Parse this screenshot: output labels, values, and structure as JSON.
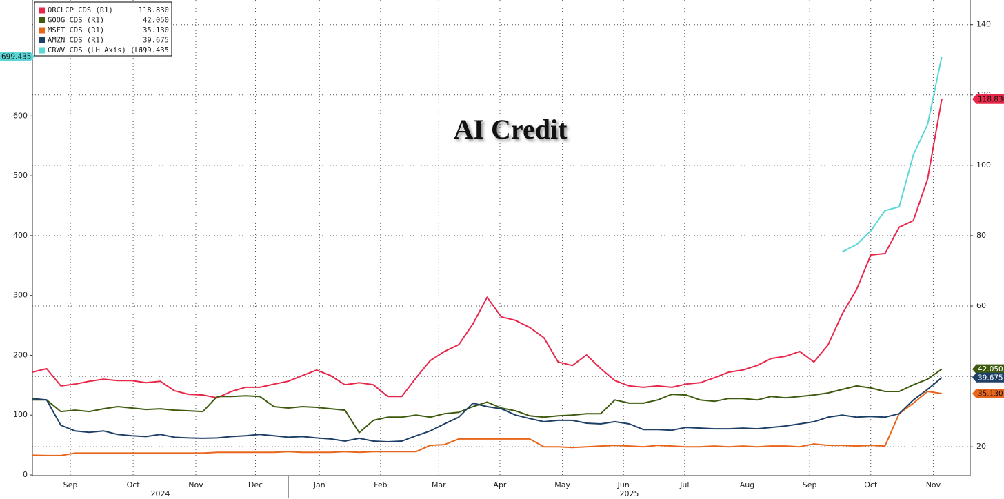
{
  "chart_data": {
    "type": "line",
    "title": "AI Credit",
    "xlim": [
      0,
      66
    ],
    "xticks": [
      {
        "value": 2.67,
        "label": "Sep"
      },
      {
        "value": 7.09,
        "label": "Oct"
      },
      {
        "value": 11.5,
        "label": "Nov"
      },
      {
        "value": 15.7,
        "label": "Dec"
      },
      {
        "value": 20.2,
        "label": "Jan"
      },
      {
        "value": 24.5,
        "label": "Feb"
      },
      {
        "value": 28.6,
        "label": "Mar"
      },
      {
        "value": 32.9,
        "label": "Apr"
      },
      {
        "value": 37.3,
        "label": "May"
      },
      {
        "value": 41.6,
        "label": "Jun"
      },
      {
        "value": 45.9,
        "label": "Jul"
      },
      {
        "value": 50.3,
        "label": "Aug"
      },
      {
        "value": 54.7,
        "label": "Sep"
      },
      {
        "value": 59.0,
        "label": "Oct"
      },
      {
        "value": 63.4,
        "label": "Nov"
      }
    ],
    "year_labels": [
      {
        "value": 9.0,
        "label": "2024"
      },
      {
        "value": 42.0,
        "label": "2025"
      }
    ],
    "ylim": [
      0,
      794
    ],
    "yticks": [
      0,
      100,
      200,
      300,
      400,
      500,
      600
    ],
    "y2lim": [
      12,
      147
    ],
    "y2ticks": [
      20,
      40,
      60,
      80,
      100,
      120,
      140
    ],
    "grid": true,
    "legend": "top-left",
    "series": [
      {
        "name": "ORCLCP CDS (R1)",
        "color": "#e8284a",
        "axis": "y2",
        "values": [
          41.2,
          42.2,
          37.3,
          37.8,
          38.6,
          39.2,
          38.8,
          38.8,
          38.2,
          38.6,
          35.9,
          34.9,
          34.7,
          33.9,
          35.7,
          36.9,
          36.9,
          37.8,
          38.6,
          40.2,
          41.8,
          40.2,
          37.6,
          38.2,
          37.6,
          34.3,
          34.3,
          39.6,
          44.5,
          47.1,
          49.0,
          54.9,
          62.5,
          56.9,
          55.9,
          53.9,
          51.0,
          44.1,
          43.1,
          46.1,
          42.2,
          38.8,
          37.3,
          36.9,
          37.3,
          36.9,
          37.8,
          38.2,
          39.6,
          41.2,
          41.8,
          43.1,
          45.1,
          45.7,
          47.1,
          44.1,
          49.0,
          57.8,
          64.7,
          74.5,
          74.9,
          82.4,
          84.3,
          96.1,
          118.83
        ],
        "value_labels": [
          null,
          null,
          null,
          null,
          null,
          null,
          null,
          null,
          null,
          null,
          null,
          null,
          null,
          null,
          null,
          null,
          null,
          null,
          null,
          null,
          null,
          null,
          null,
          null,
          null,
          null,
          null,
          null,
          null,
          null,
          null,
          null,
          null,
          null,
          null,
          null,
          null,
          null,
          null,
          null,
          null,
          null,
          null,
          null,
          null,
          null,
          null,
          null,
          null,
          null,
          null,
          null,
          null,
          null,
          null,
          null,
          null,
          null,
          null,
          null,
          null,
          null,
          null,
          null,
          "118.830"
        ]
      },
      {
        "name": "GOOG CDS (R1)",
        "color": "#3d5a0f",
        "axis": "y2",
        "values": [
          33.3,
          33.3,
          30.0,
          30.4,
          30.0,
          30.8,
          31.4,
          31.0,
          30.6,
          30.8,
          30.4,
          30.2,
          30.0,
          34.3,
          34.3,
          34.5,
          34.3,
          31.4,
          31.0,
          31.4,
          31.2,
          30.8,
          30.4,
          24.0,
          27.5,
          28.4,
          28.4,
          29.0,
          28.4,
          29.4,
          29.8,
          31.4,
          32.7,
          31.0,
          30.2,
          28.8,
          28.4,
          28.8,
          29.0,
          29.4,
          29.4,
          33.3,
          32.4,
          32.4,
          33.3,
          34.9,
          34.7,
          33.3,
          32.9,
          33.7,
          33.7,
          33.3,
          34.3,
          33.9,
          34.3,
          34.7,
          35.3,
          36.3,
          37.3,
          36.7,
          35.7,
          35.7,
          37.6,
          39.2,
          42.05
        ],
        "value_labels": [
          null,
          null,
          null,
          null,
          null,
          null,
          null,
          null,
          null,
          null,
          null,
          null,
          null,
          null,
          null,
          null,
          null,
          null,
          null,
          null,
          null,
          null,
          null,
          null,
          null,
          null,
          null,
          null,
          null,
          null,
          null,
          null,
          null,
          null,
          null,
          null,
          null,
          null,
          null,
          null,
          null,
          null,
          null,
          null,
          null,
          null,
          null,
          null,
          null,
          null,
          null,
          null,
          null,
          null,
          null,
          null,
          null,
          null,
          null,
          null,
          null,
          null,
          null,
          null,
          "42.050"
        ]
      },
      {
        "name": "MSFT CDS (R1)",
        "color": "#e8661c",
        "axis": "y2",
        "values": [
          17.6,
          17.5,
          17.5,
          18.2,
          18.2,
          18.2,
          18.2,
          18.2,
          18.2,
          18.2,
          18.2,
          18.2,
          18.2,
          18.4,
          18.4,
          18.4,
          18.4,
          18.4,
          18.6,
          18.4,
          18.4,
          18.4,
          18.6,
          18.4,
          18.6,
          18.6,
          18.6,
          18.6,
          20.4,
          20.6,
          22.2,
          22.2,
          22.2,
          22.2,
          22.2,
          22.2,
          20.0,
          20.0,
          19.8,
          20.0,
          20.2,
          20.4,
          20.2,
          20.0,
          20.4,
          20.2,
          20.0,
          20.0,
          20.2,
          20.0,
          20.2,
          20.0,
          20.2,
          20.2,
          20.0,
          20.8,
          20.4,
          20.4,
          20.2,
          20.4,
          20.2,
          29.4,
          32.4,
          35.7,
          35.13
        ],
        "value_labels": [
          null,
          null,
          null,
          null,
          null,
          null,
          null,
          null,
          null,
          null,
          null,
          null,
          null,
          null,
          null,
          null,
          null,
          null,
          null,
          null,
          null,
          null,
          null,
          null,
          null,
          null,
          null,
          null,
          null,
          null,
          null,
          null,
          null,
          null,
          null,
          null,
          null,
          null,
          null,
          null,
          null,
          null,
          null,
          null,
          null,
          null,
          null,
          null,
          null,
          null,
          null,
          null,
          null,
          null,
          null,
          null,
          null,
          null,
          null,
          null,
          null,
          null,
          null,
          null,
          "35.130"
        ]
      },
      {
        "name": "AMZN CDS (R1)",
        "color": "#1e3f66",
        "axis": "y2",
        "values": [
          33.7,
          33.3,
          26.1,
          24.5,
          24.1,
          24.5,
          23.5,
          23.1,
          22.9,
          23.5,
          22.7,
          22.5,
          22.4,
          22.5,
          22.9,
          23.1,
          23.5,
          23.1,
          22.7,
          22.9,
          22.5,
          22.2,
          21.6,
          22.4,
          21.6,
          21.4,
          21.6,
          23.1,
          24.5,
          26.5,
          28.4,
          32.4,
          31.4,
          30.8,
          29.0,
          28.0,
          27.1,
          27.5,
          27.5,
          26.7,
          26.5,
          27.1,
          26.5,
          24.9,
          24.9,
          24.7,
          25.5,
          25.3,
          25.1,
          25.1,
          25.3,
          25.1,
          25.5,
          25.9,
          26.5,
          27.1,
          28.4,
          29.0,
          28.4,
          28.6,
          28.4,
          29.4,
          33.3,
          36.3,
          39.675
        ],
        "value_labels": [
          null,
          null,
          null,
          null,
          null,
          null,
          null,
          null,
          null,
          null,
          null,
          null,
          null,
          null,
          null,
          null,
          null,
          null,
          null,
          null,
          null,
          null,
          null,
          null,
          null,
          null,
          null,
          null,
          null,
          null,
          null,
          null,
          null,
          null,
          null,
          null,
          null,
          null,
          null,
          null,
          null,
          null,
          null,
          null,
          null,
          null,
          null,
          null,
          null,
          null,
          null,
          null,
          null,
          null,
          null,
          null,
          null,
          null,
          null,
          null,
          null,
          null,
          null,
          null,
          "39.675"
        ]
      },
      {
        "name": "CRWV CDS (LH Axis) (L1)",
        "color": "#5cd6d6",
        "axis": "y",
        "values": [
          null,
          null,
          null,
          null,
          null,
          null,
          null,
          null,
          null,
          null,
          null,
          null,
          null,
          null,
          null,
          null,
          null,
          null,
          null,
          null,
          null,
          null,
          null,
          null,
          null,
          null,
          null,
          null,
          null,
          null,
          null,
          null,
          null,
          null,
          null,
          null,
          null,
          null,
          null,
          null,
          null,
          null,
          null,
          null,
          null,
          null,
          null,
          null,
          null,
          null,
          null,
          null,
          null,
          null,
          null,
          null,
          null,
          373,
          385,
          408,
          442,
          448,
          535,
          586,
          699.435
        ],
        "value_labels": [
          null,
          null,
          null,
          null,
          null,
          null,
          null,
          null,
          null,
          null,
          null,
          null,
          null,
          null,
          null,
          null,
          null,
          null,
          null,
          null,
          null,
          null,
          null,
          null,
          null,
          null,
          null,
          null,
          null,
          null,
          null,
          null,
          null,
          null,
          null,
          null,
          null,
          null,
          null,
          null,
          null,
          null,
          null,
          null,
          null,
          null,
          null,
          null,
          null,
          null,
          null,
          null,
          null,
          null,
          null,
          null,
          null,
          null,
          null,
          null,
          null,
          null,
          null,
          null,
          "699.435"
        ]
      }
    ]
  }
}
